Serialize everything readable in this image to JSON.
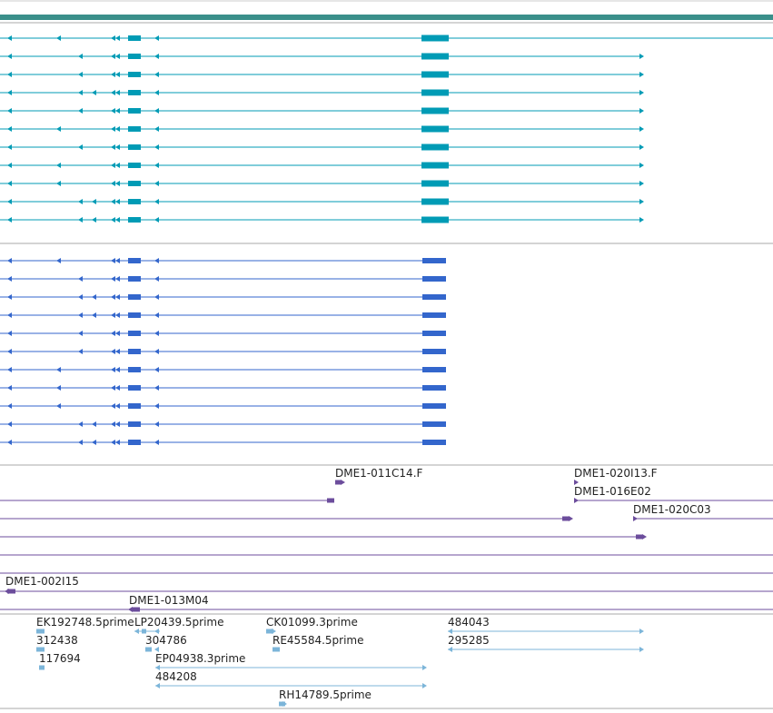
{
  "colors": {
    "gene": "#009bb5",
    "transcript": "#3366cc",
    "clone": "#6c4d9c",
    "est": "#7cb5d9",
    "divider": "#aaaaaa",
    "top_band": "#3a8f8a"
  },
  "tracks": {
    "clones": {
      "labels": [
        "DME1-011C14.F",
        "DME1-020I13.F",
        "DME1-016E02",
        "DME1-020C03",
        "DME1-002I15",
        "DME1-013M04"
      ]
    },
    "ests": {
      "labels": [
        "EK192748.5prime",
        "LP20439.5prime",
        "CK01099.3prime",
        "484043",
        "312438",
        "304786",
        "RE45584.5prime",
        "295285",
        "117694",
        "EP04938.3prime",
        "484208",
        "RH14789.5prime"
      ]
    }
  }
}
